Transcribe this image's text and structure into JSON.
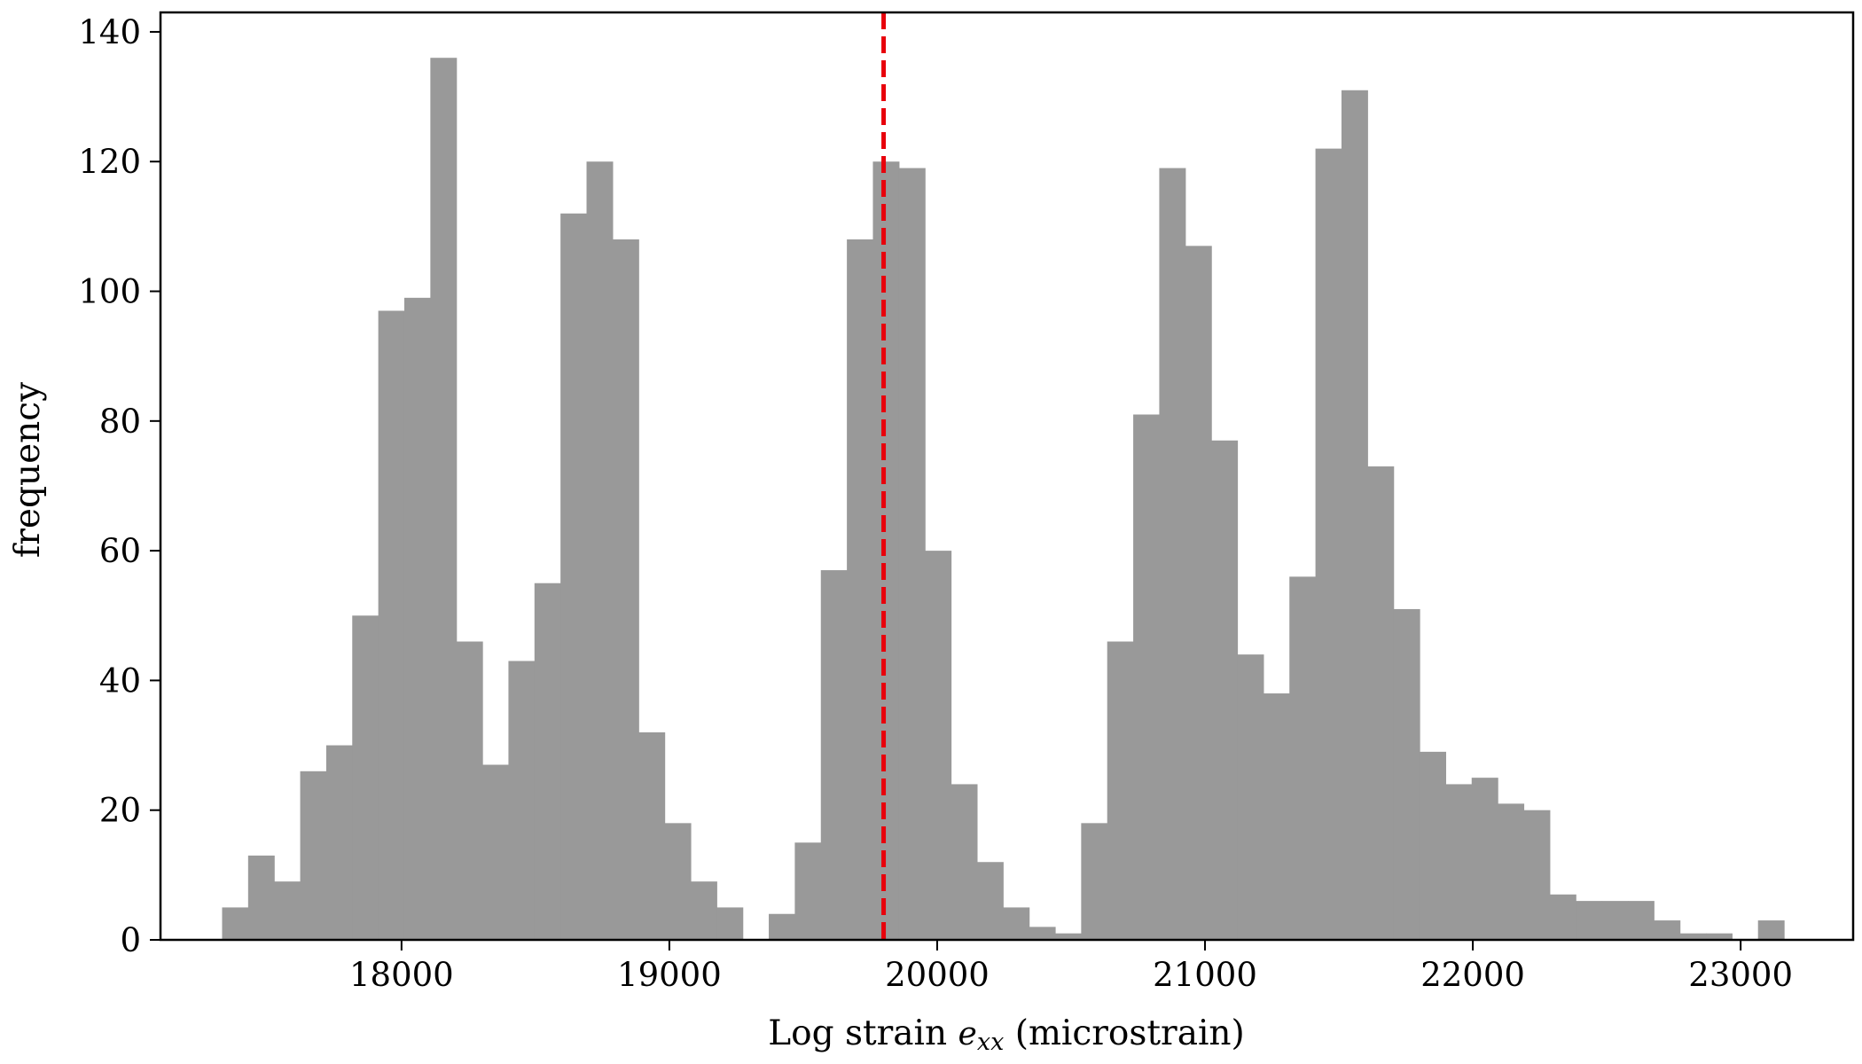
{
  "chart_data": {
    "type": "histogram",
    "xlabel": {
      "prefix": "Log strain ",
      "var": "e",
      "sub": "xx",
      "suffix": " (microstrain)"
    },
    "ylabel": "frequency",
    "xlim": [
      17100,
      23420
    ],
    "ylim": [
      0,
      143
    ],
    "x_ticks": [
      18000,
      19000,
      20000,
      21000,
      22000,
      23000
    ],
    "y_ticks": [
      0,
      20,
      40,
      60,
      80,
      100,
      120,
      140
    ],
    "bin_start": 17330,
    "bin_width": 97.2,
    "values": [
      5,
      13,
      9,
      26,
      30,
      50,
      97,
      99,
      136,
      46,
      27,
      43,
      55,
      112,
      120,
      108,
      32,
      18,
      9,
      5,
      0,
      4,
      15,
      57,
      108,
      120,
      119,
      60,
      24,
      12,
      5,
      2,
      1,
      18,
      46,
      81,
      119,
      107,
      77,
      44,
      38,
      56,
      122,
      131,
      73,
      51,
      29,
      24,
      25,
      21,
      20,
      7,
      6,
      6,
      6,
      3,
      1,
      1,
      0,
      3
    ],
    "bar_color": "#999999",
    "reference_line": {
      "x": 19800,
      "color": "#e8000b",
      "style": "dashed"
    },
    "grid": false,
    "legend": "none"
  }
}
